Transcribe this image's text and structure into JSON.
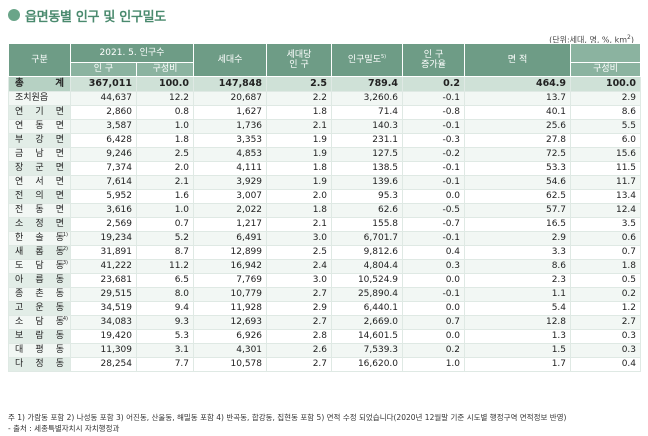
{
  "title": "읍면동별 인구 및 인구밀도",
  "unit_text": "(단위:세대, 명, %, km",
  "unit_sup": "2",
  "unit_close": ")",
  "headers": {
    "district": "구분",
    "pop_group": "2021. 5. 인구수",
    "population": "인 구",
    "pop_share": "구성비",
    "households": "세대수",
    "per_household_line1": "세대당",
    "per_household_line2": "인 구",
    "density": "인구밀도",
    "density_note": "5)",
    "growth_line1": "인 구",
    "growth_line2": "증가율",
    "area": "면 적",
    "area_share": "구성비"
  },
  "rows": [
    {
      "name": "총 계",
      "note": "",
      "pop": "367,011",
      "pop_share": "100.0",
      "households": "147,848",
      "per_hh": "2.5",
      "density": "789.4",
      "growth": "0.2",
      "area": "464.9",
      "area_share": "100.0"
    },
    {
      "name": "조치원읍",
      "note": "",
      "pop": "44,637",
      "pop_share": "12.2",
      "households": "20,687",
      "per_hh": "2.2",
      "density": "3,260.6",
      "growth": "-0.1",
      "area": "13.7",
      "area_share": "2.9"
    },
    {
      "name": "연 기 면",
      "note": "",
      "pop": "2,860",
      "pop_share": "0.8",
      "households": "1,627",
      "per_hh": "1.8",
      "density": "71.4",
      "growth": "-0.8",
      "area": "40.1",
      "area_share": "8.6"
    },
    {
      "name": "연 동 면",
      "note": "",
      "pop": "3,587",
      "pop_share": "1.0",
      "households": "1,736",
      "per_hh": "2.1",
      "density": "140.3",
      "growth": "-0.1",
      "area": "25.6",
      "area_share": "5.5"
    },
    {
      "name": "부 강 면",
      "note": "",
      "pop": "6,428",
      "pop_share": "1.8",
      "households": "3,353",
      "per_hh": "1.9",
      "density": "231.1",
      "growth": "-0.3",
      "area": "27.8",
      "area_share": "6.0"
    },
    {
      "name": "금 남 면",
      "note": "",
      "pop": "9,246",
      "pop_share": "2.5",
      "households": "4,853",
      "per_hh": "1.9",
      "density": "127.5",
      "growth": "-0.2",
      "area": "72.5",
      "area_share": "15.6"
    },
    {
      "name": "장 군 면",
      "note": "",
      "pop": "7,374",
      "pop_share": "2.0",
      "households": "4,111",
      "per_hh": "1.8",
      "density": "138.5",
      "growth": "-0.1",
      "area": "53.3",
      "area_share": "11.5"
    },
    {
      "name": "연 서 면",
      "note": "",
      "pop": "7,614",
      "pop_share": "2.1",
      "households": "3,929",
      "per_hh": "1.9",
      "density": "139.6",
      "growth": "-0.1",
      "area": "54.6",
      "area_share": "11.7"
    },
    {
      "name": "전 의 면",
      "note": "",
      "pop": "5,952",
      "pop_share": "1.6",
      "households": "3,007",
      "per_hh": "2.0",
      "density": "95.3",
      "growth": "0.0",
      "area": "62.5",
      "area_share": "13.4"
    },
    {
      "name": "전 동 면",
      "note": "",
      "pop": "3,616",
      "pop_share": "1.0",
      "households": "2,022",
      "per_hh": "1.8",
      "density": "62.6",
      "growth": "-0.5",
      "area": "57.7",
      "area_share": "12.4"
    },
    {
      "name": "소 정 면",
      "note": "",
      "pop": "2,569",
      "pop_share": "0.7",
      "households": "1,217",
      "per_hh": "2.1",
      "density": "155.8",
      "growth": "-0.7",
      "area": "16.5",
      "area_share": "3.5"
    },
    {
      "name": "한 솔 동",
      "note": "1)",
      "pop": "19,234",
      "pop_share": "5.2",
      "households": "6,491",
      "per_hh": "3.0",
      "density": "6,701.7",
      "growth": "-0.1",
      "area": "2.9",
      "area_share": "0.6"
    },
    {
      "name": "새 롬 동",
      "note": "2)",
      "pop": "31,891",
      "pop_share": "8.7",
      "households": "12,899",
      "per_hh": "2.5",
      "density": "9,812.6",
      "growth": "0.4",
      "area": "3.3",
      "area_share": "0.7"
    },
    {
      "name": "도 담 동",
      "note": "3)",
      "pop": "41,222",
      "pop_share": "11.2",
      "households": "16,942",
      "per_hh": "2.4",
      "density": "4,804.4",
      "growth": "0.3",
      "area": "8.6",
      "area_share": "1.8"
    },
    {
      "name": "아 름 동",
      "note": "",
      "pop": "23,681",
      "pop_share": "6.5",
      "households": "7,769",
      "per_hh": "3.0",
      "density": "10,524.9",
      "growth": "0.0",
      "area": "2.3",
      "area_share": "0.5"
    },
    {
      "name": "종 촌 동",
      "note": "",
      "pop": "29,515",
      "pop_share": "8.0",
      "households": "10,779",
      "per_hh": "2.7",
      "density": "25,890.4",
      "growth": "-0.1",
      "area": "1.1",
      "area_share": "0.2"
    },
    {
      "name": "고 운 동",
      "note": "",
      "pop": "34,519",
      "pop_share": "9.4",
      "households": "11,928",
      "per_hh": "2.9",
      "density": "6,440.1",
      "growth": "0.0",
      "area": "5.4",
      "area_share": "1.2"
    },
    {
      "name": "소 담 동",
      "note": "4)",
      "pop": "34,083",
      "pop_share": "9.3",
      "households": "12,693",
      "per_hh": "2.7",
      "density": "2,669.0",
      "growth": "0.7",
      "area": "12.8",
      "area_share": "2.7"
    },
    {
      "name": "보 람 동",
      "note": "",
      "pop": "19,420",
      "pop_share": "5.3",
      "households": "6,926",
      "per_hh": "2.8",
      "density": "14,601.5",
      "growth": "0.0",
      "area": "1.3",
      "area_share": "0.3"
    },
    {
      "name": "대 평 동",
      "note": "",
      "pop": "11,309",
      "pop_share": "3.1",
      "households": "4,301",
      "per_hh": "2.6",
      "density": "7,539.3",
      "growth": "0.2",
      "area": "1.5",
      "area_share": "0.3"
    },
    {
      "name": "다 정 동",
      "note": "",
      "pop": "28,254",
      "pop_share": "7.7",
      "households": "10,578",
      "per_hh": "2.7",
      "density": "16,620.0",
      "growth": "1.0",
      "area": "1.7",
      "area_share": "0.4"
    }
  ],
  "footnote": "주 1) 가람동 포함 2) 나성동 포함 3) 어진동, 산울동, 해밀동 포함 4) 반곡동, 합강동, 집현동 포함 5) 면적 수정 되었습니다(2020년 12월말 기준 시도별 행정구역 면적정보 반영)",
  "source": "- 출처 : 세종특별자치시 자치행정과",
  "colors": {
    "header": "#6e9c86",
    "title": "#4a8a6e",
    "total_row": "#cfe1d7"
  }
}
